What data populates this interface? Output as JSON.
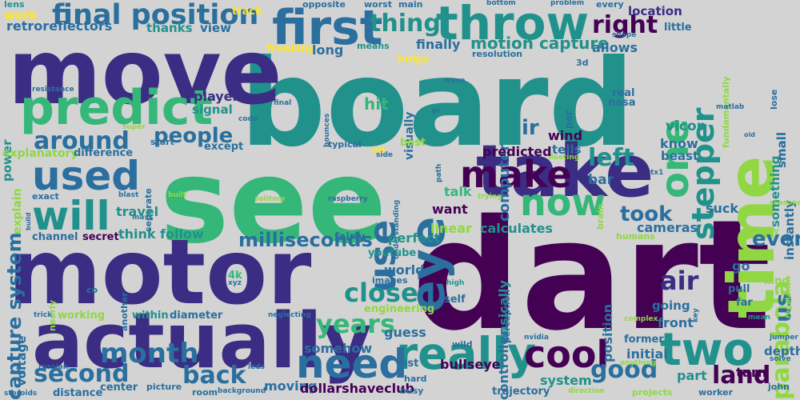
{
  "palette": {
    "background": "#d3d3d3",
    "dark_purple": "#440154",
    "indigo": "#3b2c84",
    "blue": "#31688e",
    "steel_blue": "#2a6f9e",
    "teal": "#21918c",
    "green": "#35b779",
    "lime": "#90d743",
    "yellow": "#fde725"
  },
  "words": [
    "board",
    "dart",
    "see",
    "motor",
    "move",
    "take",
    "time",
    "actually",
    "first",
    "throw",
    "predict",
    "final position",
    "used",
    "will",
    "eye",
    "make",
    "now",
    "use",
    "really",
    "cool",
    "two",
    "need",
    "one",
    "parabola",
    "month",
    "second",
    "capture system",
    "motion capture",
    "stepper",
    "air",
    "years",
    "close",
    "back",
    "good",
    "land",
    "left",
    "right",
    "thing",
    "milliseconds",
    "took",
    "even",
    "around",
    "people",
    "us",
    "ir",
    "vicon",
    "retroreflectors",
    "thanks",
    "view",
    "track",
    "opposite",
    "worst",
    "main",
    "bottom",
    "problem",
    "every",
    "location",
    "lens",
    "work",
    "means",
    "freaking",
    "long",
    "finally",
    "allows",
    "resolution",
    "3d",
    "shape",
    "little",
    "fundamentally",
    "lose",
    "something",
    "helps",
    "wave",
    "real",
    "nasa",
    "matlab",
    "player",
    "signal",
    "hit",
    "visually",
    "computer",
    "per",
    "small",
    "resistance",
    "power",
    "final",
    "bounces",
    "pi",
    "super",
    "code",
    "explanatory",
    "difference",
    "start",
    "except",
    "typical",
    "bit",
    "best",
    "side",
    "path",
    "floating",
    "beast",
    "old",
    "instantly",
    "wind",
    "know",
    "tells",
    "predicted",
    "bar",
    "want",
    "talk",
    "explain",
    "separate",
    "blast",
    "built",
    "mass",
    "raspberry",
    "understanding",
    "solitary",
    "trying",
    "brain",
    "tx1",
    "reasons",
    "exact",
    "build",
    "channel",
    "secret",
    "think",
    "follow",
    "travel",
    "linear",
    "calculates",
    "cameras",
    "suck",
    "tiny",
    "humans",
    "fairly",
    "perfect",
    "youtube",
    "worlds",
    "images",
    "basically",
    "perception",
    "controller",
    "position",
    "4k",
    "xyz",
    "co",
    "another",
    "nearly",
    "high",
    "self",
    "pull",
    "far",
    "regulation",
    "key",
    "engineering",
    "going",
    "trick",
    "within",
    "working",
    "diameter",
    "neglecting",
    "voltage",
    "russian",
    "leds",
    "hard",
    "fast",
    "bullseye",
    "guess",
    "somehow",
    "nvidia",
    "wild",
    "complex",
    "former",
    "front",
    "initial",
    "depth",
    "jumper",
    "solve",
    "anything",
    "steroids",
    "distance",
    "center",
    "picture",
    "room",
    "background",
    "moving",
    "dollarshaveclub",
    "busy",
    "system",
    "trajectory",
    "direction",
    "part",
    "projects",
    "worker",
    "john",
    "turn",
    "go",
    "kind",
    "mean"
  ]
}
